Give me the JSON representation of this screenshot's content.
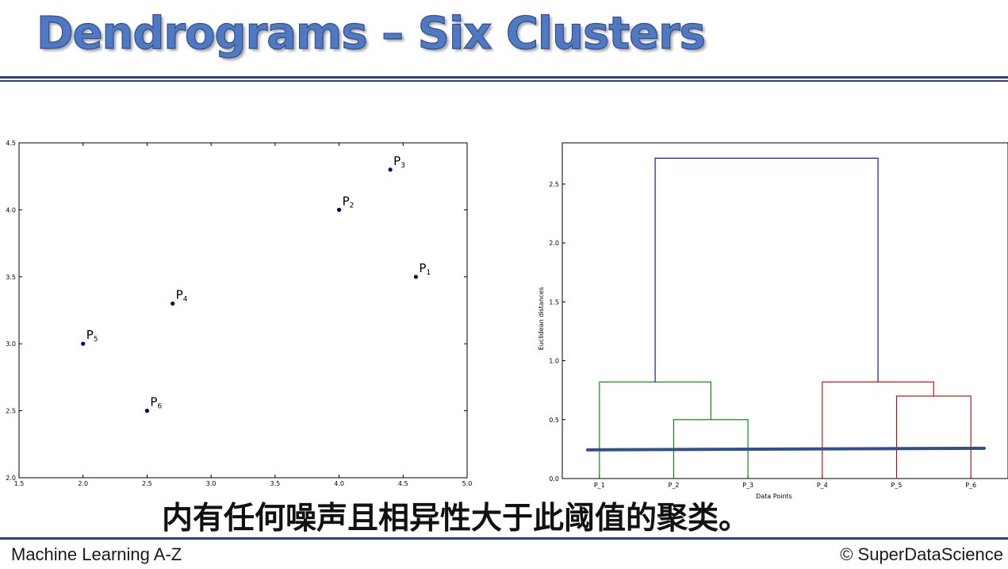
{
  "slide": {
    "title": "Dendrograms – Six Clusters",
    "footer_left": "Machine Learning A-Z",
    "footer_right": "© SuperDataScience",
    "subtitle": "内有任何噪声且相异性大于此阈值的聚类。"
  },
  "colors": {
    "title": "#4f7ac3",
    "rule": "#2e3f8c",
    "point": "#00006b",
    "cluster_green": "#008000",
    "cluster_red": "#cc0000",
    "link_blue": "#0000aa",
    "threshold": "#34508a"
  },
  "chart_data": [
    {
      "type": "scatter",
      "xlim": [
        1.5,
        5.0
      ],
      "ylim": [
        2.0,
        4.5
      ],
      "xticks": [
        "1.5",
        "2.0",
        "2.5",
        "3.0",
        "3.5",
        "4.0",
        "4.5",
        "5.0"
      ],
      "yticks": [
        "2.0",
        "2.5",
        "3.0",
        "3.5",
        "4.0",
        "4.5"
      ],
      "points": [
        {
          "label": "P",
          "sub": "1",
          "x": 4.6,
          "y": 3.5
        },
        {
          "label": "P",
          "sub": "2",
          "x": 4.0,
          "y": 4.0
        },
        {
          "label": "P",
          "sub": "3",
          "x": 4.4,
          "y": 4.3
        },
        {
          "label": "P",
          "sub": "4",
          "x": 2.7,
          "y": 3.3
        },
        {
          "label": "P",
          "sub": "5",
          "x": 2.0,
          "y": 3.0
        },
        {
          "label": "P",
          "sub": "6",
          "x": 2.5,
          "y": 2.5
        }
      ]
    },
    {
      "type": "dendrogram",
      "xlabel": "Data Points",
      "ylabel": "Euclidean distances",
      "ylim": [
        0,
        2.85
      ],
      "yticks": [
        "0.0",
        "0.5",
        "1.0",
        "1.5",
        "2.0",
        "2.5"
      ],
      "leaves": [
        "P_1",
        "P_2",
        "P_3",
        "P_4",
        "P_5",
        "P_6"
      ],
      "merges": [
        {
          "left": "P_2",
          "right": "P_3",
          "height": 0.5,
          "color": "green"
        },
        {
          "left": "P_1",
          "right": "P_2,P_3",
          "height": 0.82,
          "color": "green"
        },
        {
          "left": "P_5",
          "right": "P_6",
          "height": 0.7,
          "color": "red"
        },
        {
          "left": "P_4",
          "right": "P_5,P_6",
          "height": 0.82,
          "color": "red"
        },
        {
          "left": "P_1,P_2,P_3",
          "right": "P_4,P_5,P_6",
          "height": 2.72,
          "color": "blue"
        }
      ],
      "threshold": 0.25
    }
  ]
}
